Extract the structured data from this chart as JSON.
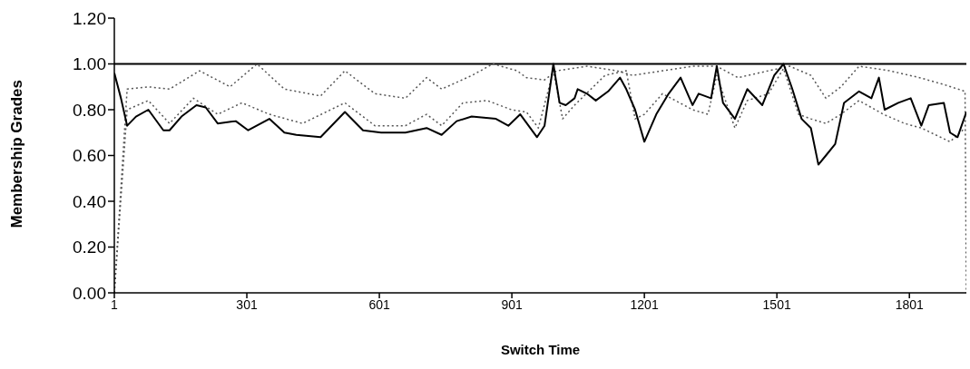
{
  "chart_data": {
    "type": "line",
    "xlabel": "Switch Time",
    "ylabel": "Membership Grades",
    "xlim": [
      1,
      1930
    ],
    "ylim": [
      0,
      1.2
    ],
    "xticks": [
      1,
      301,
      601,
      901,
      1201,
      1501,
      1801
    ],
    "yticks": [
      {
        "value": 0,
        "label": "0.00"
      },
      {
        "value": 0.2,
        "label": "0.20"
      },
      {
        "value": 0.4,
        "label": "0.40"
      },
      {
        "value": 0.6,
        "label": "0.60"
      },
      {
        "value": 0.8,
        "label": "0.80"
      },
      {
        "value": 1,
        "label": "1.00"
      },
      {
        "value": 1.2,
        "label": "1.20"
      }
    ],
    "marker": "none",
    "series": [
      {
        "color": "#000000",
        "line_style": "solid",
        "x": [
          1,
          1930
        ],
        "values": [
          1,
          1
        ]
      },
      {
        "color": "#555555",
        "line_style": "dotted",
        "x": [
          1,
          30,
          78,
          126,
          194,
          263,
          324,
          386,
          468,
          523,
          591,
          660,
          708,
          742,
          811,
          858,
          913,
          934,
          975,
          1002,
          1071,
          1139,
          1174,
          1242,
          1310,
          1365,
          1413,
          1482,
          1530,
          1578,
          1612,
          1646,
          1687,
          1756,
          1824,
          1879,
          1927,
          1930
        ],
        "values": [
          0,
          0.89,
          0.9,
          0.89,
          0.97,
          0.9,
          1,
          0.89,
          0.86,
          0.97,
          0.87,
          0.85,
          0.94,
          0.89,
          0.95,
          1,
          0.97,
          0.94,
          0.93,
          0.97,
          0.99,
          0.97,
          0.95,
          0.97,
          0.99,
          0.99,
          0.94,
          0.97,
          0.99,
          0.95,
          0.85,
          0.9,
          0.99,
          0.97,
          0.94,
          0.91,
          0.88,
          0
        ]
      },
      {
        "color": "#555555",
        "line_style": "dotted",
        "x": [
          1,
          30,
          78,
          126,
          180,
          235,
          290,
          352,
          427,
          523,
          591,
          660,
          708,
          742,
          790,
          845,
          900,
          934,
          961,
          995,
          1016,
          1043,
          1112,
          1160,
          1180,
          1201,
          1242,
          1310,
          1345,
          1365,
          1406,
          1434,
          1482,
          1516,
          1550,
          1578,
          1612,
          1646,
          1687,
          1742,
          1790,
          1828,
          1893,
          1927
        ],
        "values": [
          0,
          0.8,
          0.84,
          0.74,
          0.85,
          0.78,
          0.83,
          0.78,
          0.74,
          0.83,
          0.73,
          0.73,
          0.78,
          0.73,
          0.83,
          0.84,
          0.8,
          0.79,
          0.72,
          0.97,
          0.76,
          0.82,
          0.95,
          0.97,
          0.76,
          0.78,
          0.87,
          0.8,
          0.78,
          0.95,
          0.72,
          0.84,
          0.87,
          0.98,
          0.78,
          0.76,
          0.74,
          0.78,
          0.84,
          0.78,
          0.74,
          0.72,
          0.66,
          0.72
        ]
      },
      {
        "color": "#000000",
        "line_style": "solid",
        "x": [
          1,
          16,
          30,
          50,
          78,
          112,
          126,
          153,
          187,
          208,
          235,
          276,
          304,
          352,
          386,
          413,
          468,
          523,
          564,
          605,
          660,
          708,
          742,
          776,
          810,
          865,
          893,
          920,
          958,
          975,
          995,
          1009,
          1023,
          1043,
          1050,
          1071,
          1091,
          1119,
          1146,
          1160,
          1180,
          1201,
          1228,
          1256,
          1283,
          1310,
          1324,
          1352,
          1365,
          1379,
          1406,
          1434,
          1468,
          1495,
          1516,
          1536,
          1557,
          1578,
          1595,
          1612,
          1633,
          1653,
          1687,
          1715,
          1732,
          1745,
          1776,
          1804,
          1828,
          1845,
          1879,
          1893,
          1910,
          1930
        ],
        "values": [
          0.96,
          0.85,
          0.73,
          0.77,
          0.8,
          0.71,
          0.71,
          0.77,
          0.82,
          0.81,
          0.74,
          0.75,
          0.71,
          0.76,
          0.7,
          0.69,
          0.68,
          0.79,
          0.71,
          0.7,
          0.7,
          0.72,
          0.69,
          0.75,
          0.77,
          0.76,
          0.73,
          0.78,
          0.68,
          0.73,
          1,
          0.83,
          0.82,
          0.85,
          0.89,
          0.87,
          0.84,
          0.88,
          0.94,
          0.89,
          0.8,
          0.66,
          0.78,
          0.87,
          0.94,
          0.82,
          0.87,
          0.85,
          0.99,
          0.83,
          0.76,
          0.89,
          0.82,
          0.95,
          1,
          0.89,
          0.76,
          0.72,
          0.56,
          0.6,
          0.65,
          0.83,
          0.88,
          0.85,
          0.94,
          0.8,
          0.83,
          0.85,
          0.73,
          0.82,
          0.83,
          0.7,
          0.68,
          0.79
        ]
      }
    ]
  }
}
